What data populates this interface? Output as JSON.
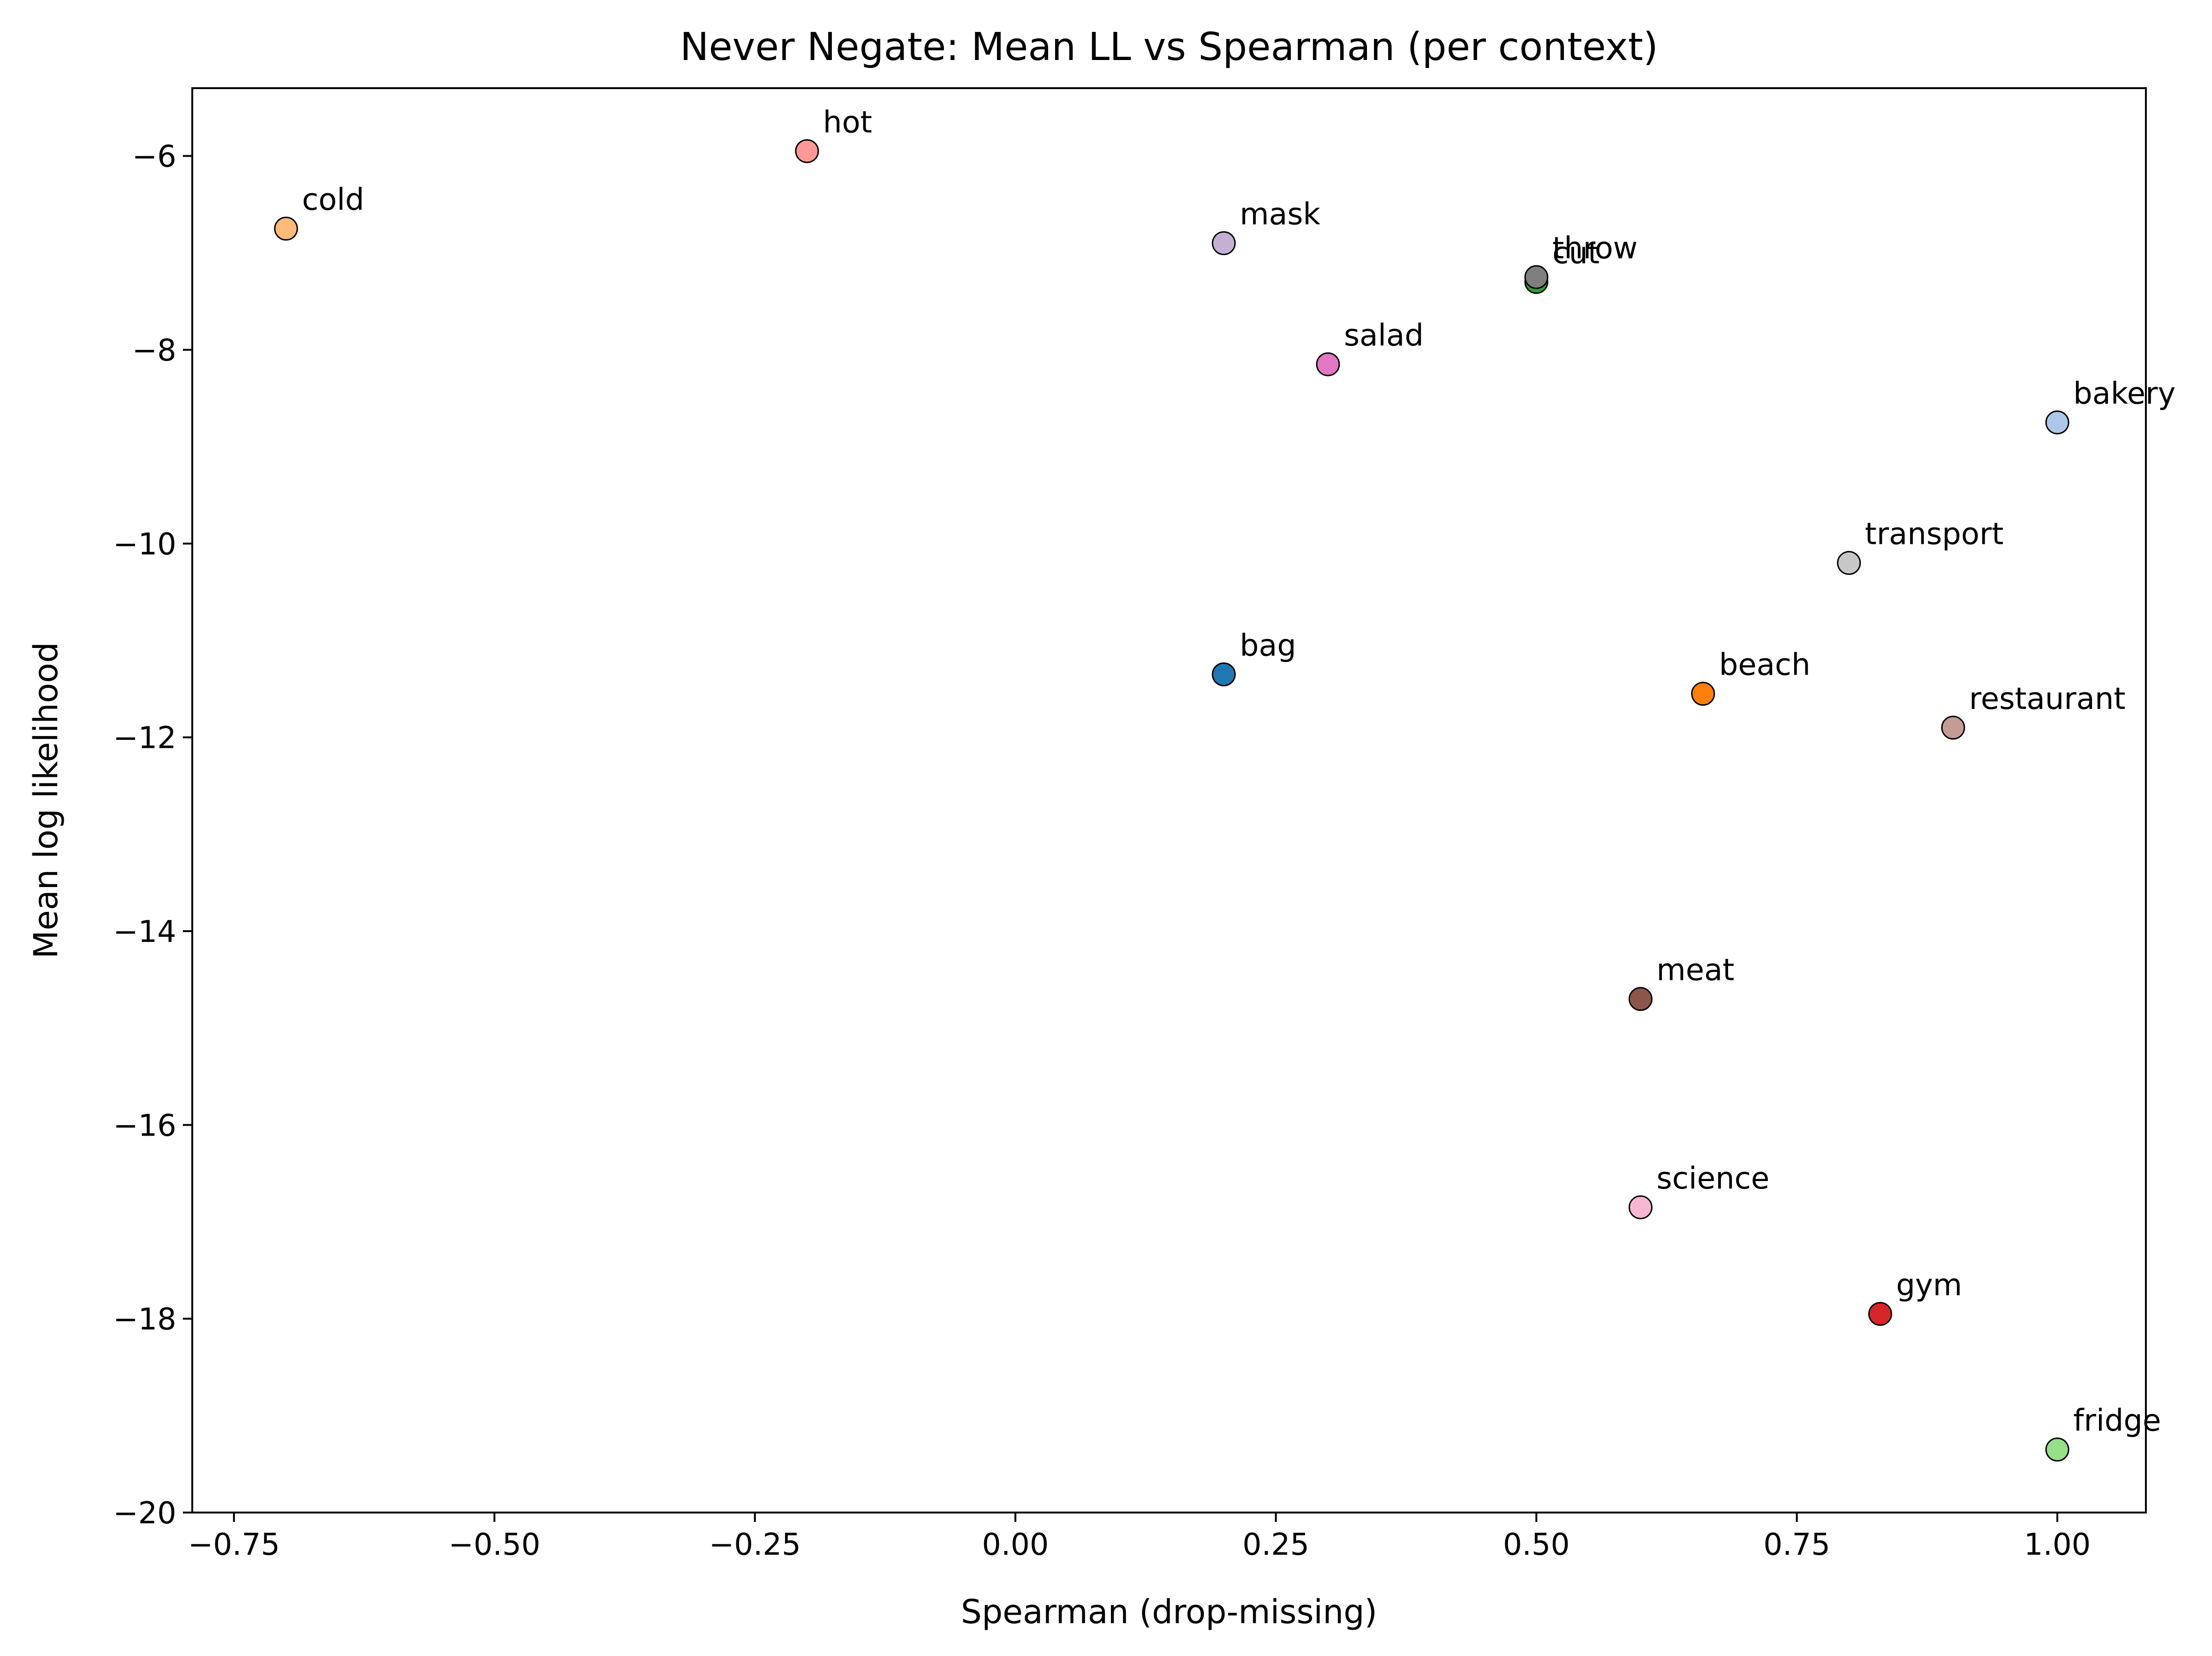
{
  "chart_data": {
    "type": "scatter",
    "title": "Never Negate: Mean LL vs Spearman (per context)",
    "xlabel": "Spearman (drop-missing)",
    "ylabel": "Mean log likelihood",
    "xlim": [
      -0.79,
      1.085
    ],
    "ylim": [
      -20,
      -5.3
    ],
    "xticks": [
      -0.75,
      -0.5,
      -0.25,
      0.0,
      0.25,
      0.5,
      0.75,
      1.0
    ],
    "xtick_labels": [
      "−0.75",
      "−0.50",
      "−0.25",
      "0.00",
      "0.25",
      "0.50",
      "0.75",
      "1.00"
    ],
    "yticks": [
      -20,
      -18,
      -16,
      -14,
      -12,
      -10,
      -8,
      -6
    ],
    "ytick_labels": [
      "−20",
      "−18",
      "−16",
      "−14",
      "−12",
      "−10",
      "−8",
      "−6"
    ],
    "grid": false,
    "points": [
      {
        "label": "hot",
        "x": -0.2,
        "y": -5.95,
        "color": "#ff9896"
      },
      {
        "label": "cold",
        "x": -0.7,
        "y": -6.75,
        "color": "#ffbb78"
      },
      {
        "label": "mask",
        "x": 0.2,
        "y": -6.9,
        "color": "#c5b0d5"
      },
      {
        "label": "cut",
        "x": 0.5,
        "y": -7.3,
        "color": "#2ca02c"
      },
      {
        "label": "throw",
        "x": 0.5,
        "y": -7.25,
        "color": "#7f7f7f"
      },
      {
        "label": "salad",
        "x": 0.3,
        "y": -8.15,
        "color": "#e377c2"
      },
      {
        "label": "bakery",
        "x": 1.0,
        "y": -8.75,
        "color": "#aec7e8"
      },
      {
        "label": "transport",
        "x": 0.8,
        "y": -10.2,
        "color": "#c7c7c7"
      },
      {
        "label": "bag",
        "x": 0.2,
        "y": -11.35,
        "color": "#1f77b4"
      },
      {
        "label": "beach",
        "x": 0.66,
        "y": -11.55,
        "color": "#ff7f0e"
      },
      {
        "label": "restaurant",
        "x": 0.9,
        "y": -11.9,
        "color": "#c49c94"
      },
      {
        "label": "meat",
        "x": 0.6,
        "y": -14.7,
        "color": "#8c564b"
      },
      {
        "label": "science",
        "x": 0.6,
        "y": -16.85,
        "color": "#f7b6d2"
      },
      {
        "label": "gym",
        "x": 0.83,
        "y": -17.95,
        "color": "#d62728"
      },
      {
        "label": "fridge",
        "x": 1.0,
        "y": -19.35,
        "color": "#98df8a"
      }
    ]
  }
}
